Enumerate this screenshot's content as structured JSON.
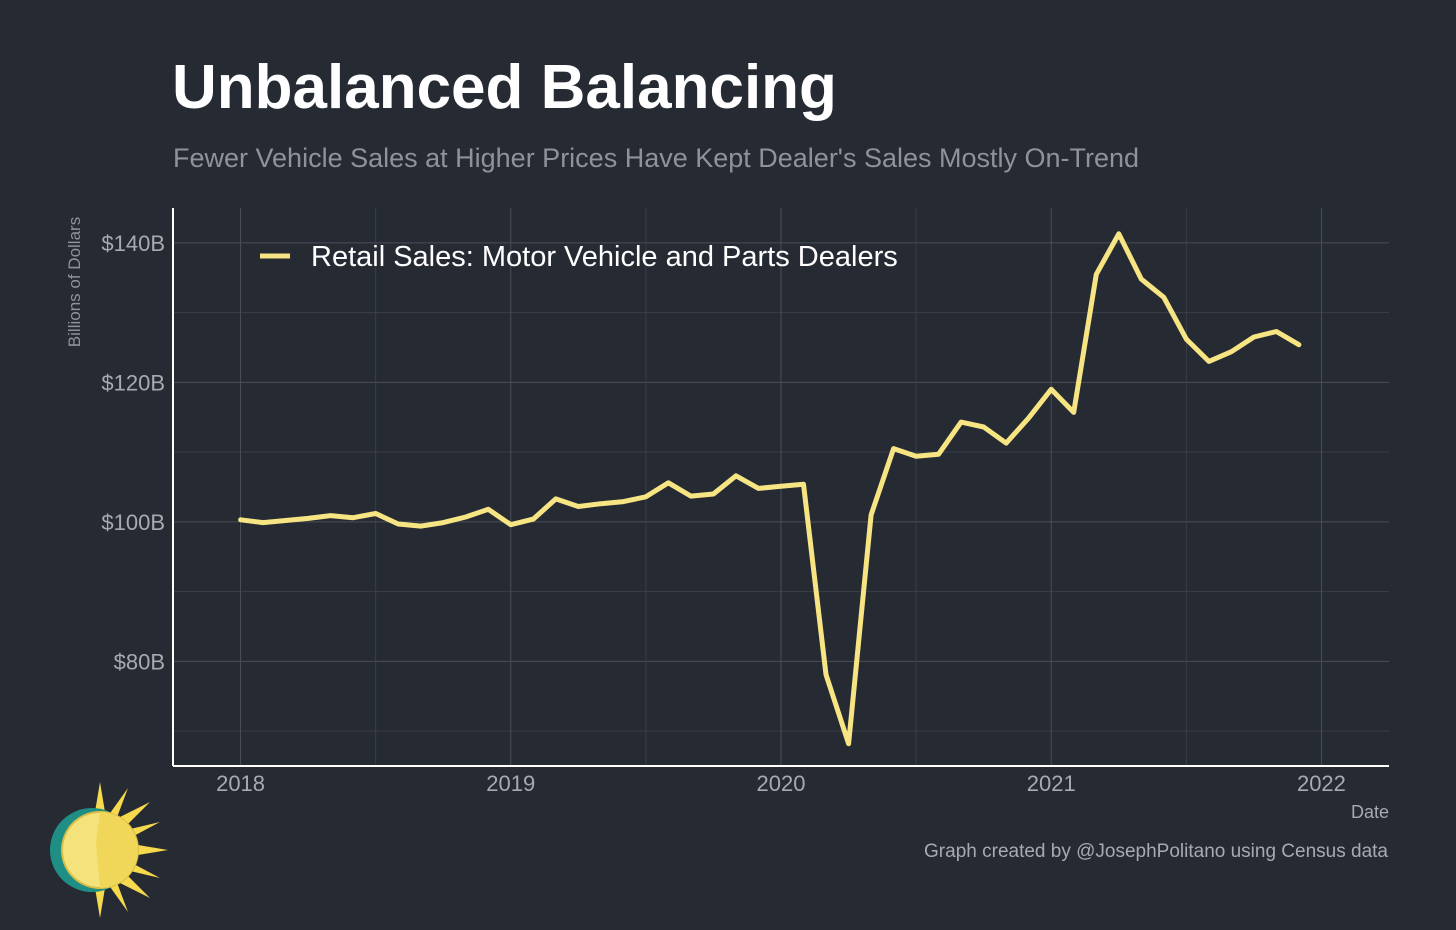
{
  "title": "Unbalanced Balancing",
  "subtitle": "Fewer Vehicle Sales at Higher Prices Have Kept Dealer's Sales Mostly On-Trend",
  "caption": "Graph created by @JosephPolitano using Census data",
  "colors": {
    "background": "#252a33",
    "line": "#f7e483",
    "grid": "#4a4e57",
    "axis_text": "#a7aab0"
  },
  "logo": {
    "icon": "sun-icon"
  },
  "chart_data": {
    "type": "line",
    "xlabel": "Date",
    "ylabel": "Billions of Dollars",
    "x_ticks": [
      "2018",
      "2019",
      "2020",
      "2021",
      "2022"
    ],
    "y_ticks": [
      "$80B",
      "$100B",
      "$120B",
      "$140B"
    ],
    "y_tick_values": [
      80,
      100,
      120,
      140
    ],
    "xlim": [
      "2017-10",
      "2022-04"
    ],
    "ylim": [
      65,
      145
    ],
    "grid": true,
    "legend_position": "top-left",
    "series": [
      {
        "name": "Retail Sales: Motor Vehicle and Parts Dealers",
        "x": [
          "2018-01",
          "2018-02",
          "2018-03",
          "2018-04",
          "2018-05",
          "2018-06",
          "2018-07",
          "2018-08",
          "2018-09",
          "2018-10",
          "2018-11",
          "2018-12",
          "2019-01",
          "2019-02",
          "2019-03",
          "2019-04",
          "2019-05",
          "2019-06",
          "2019-07",
          "2019-08",
          "2019-09",
          "2019-10",
          "2019-11",
          "2019-12",
          "2020-01",
          "2020-02",
          "2020-03",
          "2020-04",
          "2020-05",
          "2020-06",
          "2020-07",
          "2020-08",
          "2020-09",
          "2020-10",
          "2020-11",
          "2020-12",
          "2021-01",
          "2021-02",
          "2021-03",
          "2021-04",
          "2021-05",
          "2021-06",
          "2021-07",
          "2021-08",
          "2021-09",
          "2021-10",
          "2021-11",
          "2021-12"
        ],
        "values": [
          100.3,
          99.9,
          100.2,
          100.5,
          100.9,
          100.6,
          101.2,
          99.7,
          99.4,
          99.9,
          100.7,
          101.8,
          99.6,
          100.4,
          103.3,
          102.2,
          102.6,
          102.9,
          103.6,
          105.6,
          103.7,
          104.0,
          106.6,
          104.8,
          105.1,
          105.4,
          78.1,
          68.2,
          101.0,
          110.5,
          109.4,
          109.7,
          114.3,
          113.6,
          111.3,
          114.9,
          119.0,
          115.7,
          135.5,
          141.3,
          134.8,
          132.2,
          126.2,
          123.0,
          124.4,
          126.5,
          127.3,
          125.4
        ]
      }
    ]
  }
}
